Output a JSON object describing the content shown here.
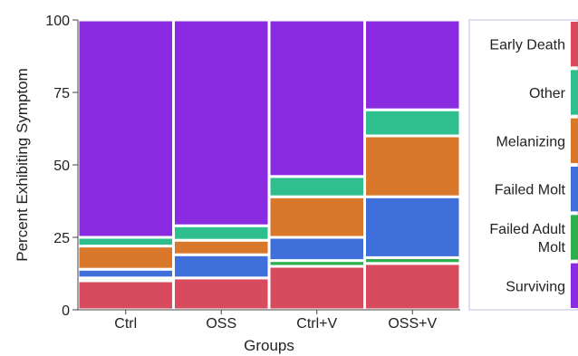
{
  "chart_data": {
    "type": "bar",
    "stacked": true,
    "percent_stacked": true,
    "xlabel": "Groups",
    "ylabel": "Percent Exhibiting Symptom",
    "ylim": [
      0,
      100
    ],
    "yticks": [
      0,
      25,
      50,
      75,
      100
    ],
    "categories": [
      "Ctrl",
      "OSS",
      "Ctrl+V",
      "OSS+V"
    ],
    "series": [
      {
        "name": "Early Death",
        "color": "#d84a5e",
        "values": [
          10,
          11,
          15,
          16
        ]
      },
      {
        "name": "Failed Adult Molt",
        "color": "#2fae4e",
        "values": [
          1,
          0,
          2,
          2
        ]
      },
      {
        "name": "Failed Molt",
        "color": "#3f6fdb",
        "values": [
          3,
          8,
          8,
          21
        ]
      },
      {
        "name": "Melanizing",
        "color": "#d9772a",
        "values": [
          8,
          5,
          14,
          21
        ]
      },
      {
        "name": "Other",
        "color": "#2fbf8f",
        "values": [
          3,
          5,
          7,
          9
        ]
      },
      {
        "name": "Surviving",
        "color": "#8a2be2",
        "values": [
          75,
          71,
          54,
          31
        ]
      }
    ],
    "legend": {
      "placement": "right",
      "order": [
        "Early Death",
        "Other",
        "Melanizing",
        "Failed Molt",
        "Failed Adult Molt",
        "Surviving"
      ]
    },
    "grid": false
  }
}
